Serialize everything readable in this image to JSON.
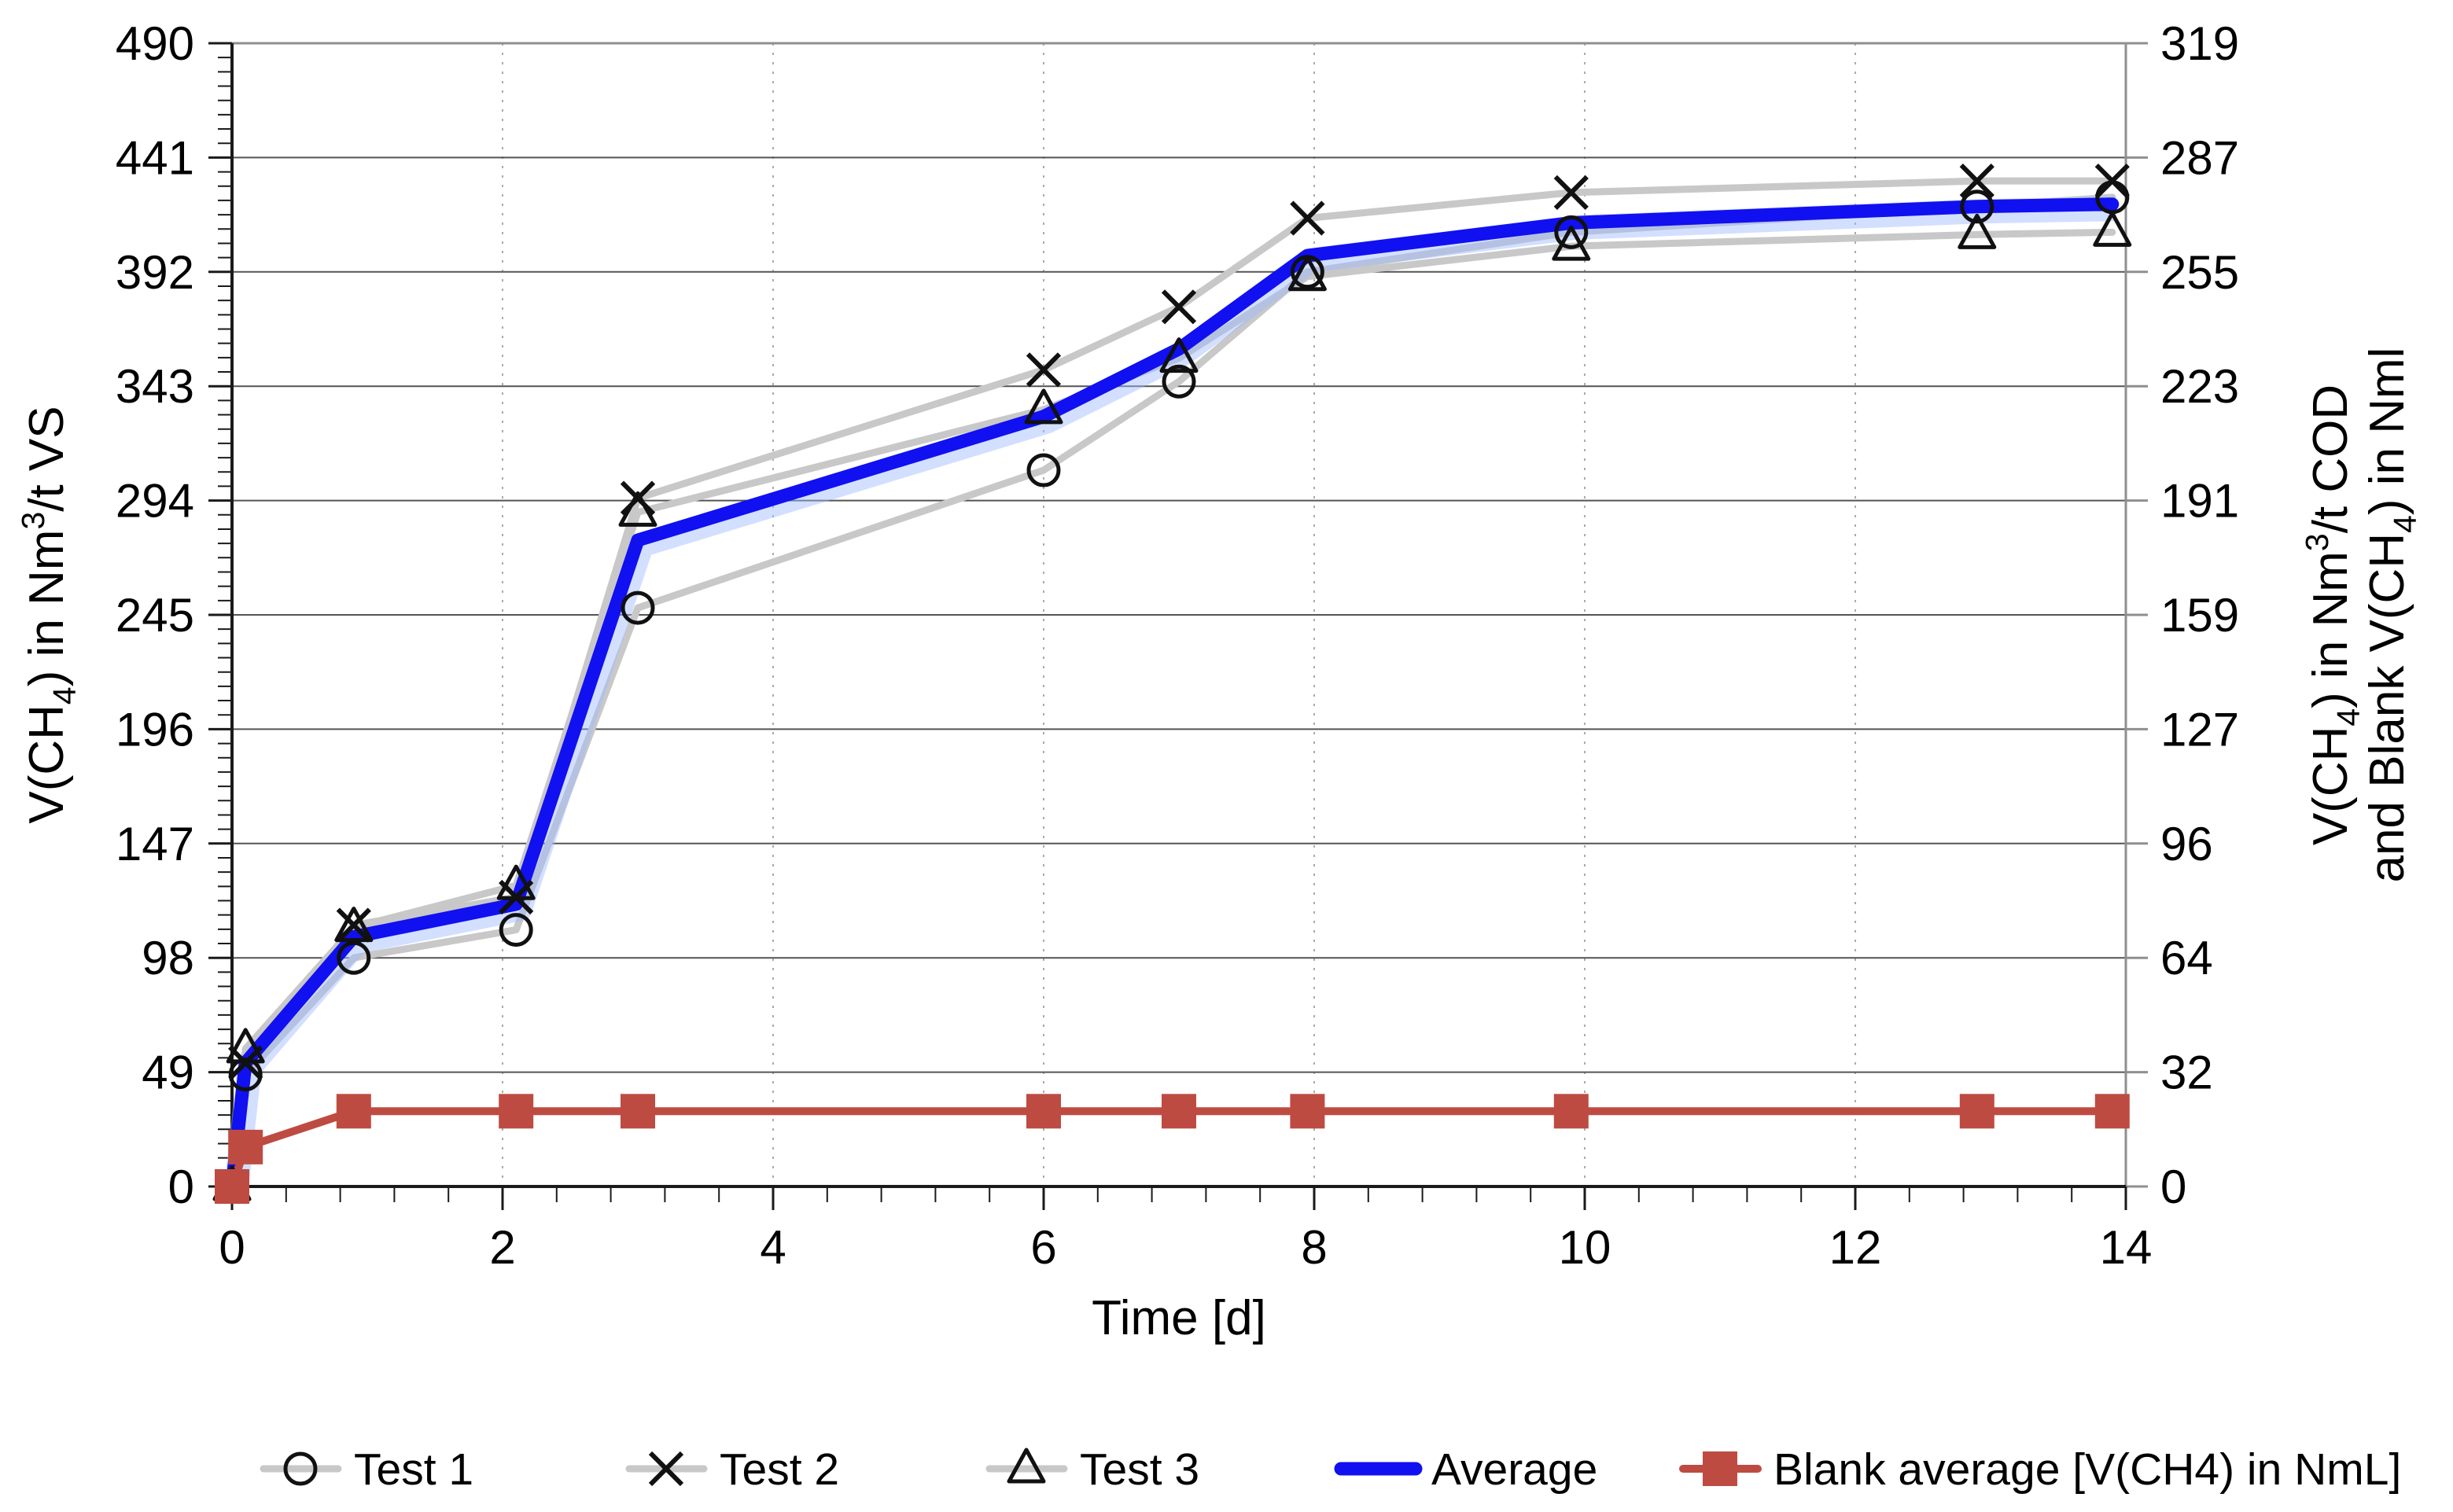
{
  "chart_data": {
    "type": "line",
    "title": "",
    "x_axis": {
      "label": "Time [d]",
      "min": 0,
      "max": 14,
      "major_ticks": [
        0,
        2,
        4,
        6,
        8,
        10,
        12,
        14
      ],
      "minor_step": 0.4
    },
    "y_axis_left": {
      "label_parts": [
        {
          "t": "V(CH"
        },
        {
          "t": "4",
          "s": "sub"
        },
        {
          "t": ") in Nm"
        },
        {
          "t": "3",
          "s": "sup"
        },
        {
          "t": "/t VS"
        }
      ],
      "min": 0,
      "max": 490,
      "tick_labels": [
        "0",
        "49",
        "98",
        "147",
        "196",
        "245",
        "294",
        "343",
        "392",
        "441",
        "490"
      ],
      "minor_divisions_per_major": 8
    },
    "y_axis_right": {
      "label_lines": [
        [
          {
            "t": "V(CH"
          },
          {
            "t": "4",
            "s": "sub"
          },
          {
            "t": ") in Nm"
          },
          {
            "t": "3",
            "s": "sup"
          },
          {
            "t": "/t COD"
          }
        ],
        [
          {
            "t": "and Blank V(CH"
          },
          {
            "t": "4",
            "s": "sub"
          },
          {
            "t": ") in Nml"
          }
        ]
      ],
      "min": 0,
      "max": 319,
      "tick_labels": [
        "0",
        "32",
        "64",
        "96",
        "127",
        "159",
        "191",
        "223",
        "255",
        "287",
        "319"
      ]
    },
    "x": [
      0,
      0.1,
      0.9,
      2.1,
      3,
      6,
      7,
      7.95,
      9.9,
      12.9,
      13.9
    ],
    "series": [
      {
        "name": "Test 1",
        "axis": "left",
        "line_color": "#C8C8C8",
        "line_width": 9,
        "marker": "circle",
        "marker_color": "#111111",
        "values": [
          0,
          48,
          98,
          110,
          248,
          307,
          345,
          392,
          409,
          420,
          424
        ]
      },
      {
        "name": "Test 2",
        "axis": "left",
        "line_color": "#C8C8C8",
        "line_width": 9,
        "marker": "x",
        "marker_color": "#111111",
        "values": [
          0,
          53,
          112,
          124,
          295,
          350,
          377,
          415,
          426,
          431,
          431
        ]
      },
      {
        "name": "Test 3",
        "axis": "left",
        "line_color": "#C8C8C8",
        "line_width": 9,
        "marker": "triangle",
        "marker_color": "#111111",
        "values": [
          0,
          59,
          111,
          129,
          289,
          333,
          355,
          390,
          403,
          408,
          409
        ]
      },
      {
        "name": "Average",
        "axis": "left",
        "line_color": "#1010F0",
        "line_width": 17,
        "marker": "none",
        "marker_color": "#1010F0",
        "halo": true,
        "values": [
          0,
          53,
          107,
          121,
          277,
          330,
          359,
          399,
          413,
          420,
          421
        ]
      },
      {
        "name": "Blank average [V(CH4) in NmL]",
        "axis": "right",
        "line_color": "#BE4B42",
        "line_width": 10,
        "marker": "square",
        "marker_color": "#BE4B42",
        "values": [
          0,
          11,
          21,
          21,
          21,
          21,
          21,
          21,
          21,
          21,
          21
        ]
      }
    ],
    "grid": {
      "horizontal_color": "#545454",
      "vertical_dash_color": "#ABABAB",
      "axis_color": "#1a1a1a",
      "border_color": "#8F8F8F"
    },
    "legend_position": "bottom"
  }
}
